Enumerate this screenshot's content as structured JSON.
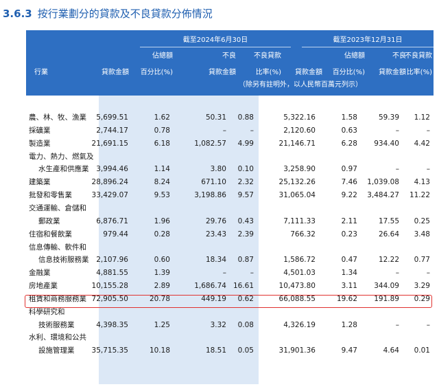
{
  "section": {
    "number": "3.6.3",
    "title": "按行業劃分的貸款及不良貸款分佈情況"
  },
  "header": {
    "industry": "行業",
    "period1": "截至2024年6月30日",
    "period2": "截至2023年12月31日",
    "loan_amount": "貸款金額",
    "pct_line1": "佔總額",
    "pct_line2": "百分比(%)",
    "npl_line1": "不良",
    "npl_line2": "貸款金額",
    "ratio_line1": "不良貸款",
    "ratio_line2": "比率(%)",
    "note": "（除另有註明外，以人民幣百萬元列示）"
  },
  "rows": [
    {
      "label": [
        "農、林、牧、漁業"
      ],
      "v": [
        "5,699.51",
        "1.62",
        "50.31",
        "0.88",
        "5,322.16",
        "1.58",
        "59.39",
        "1.12"
      ]
    },
    {
      "label": [
        "採礦業"
      ],
      "v": [
        "2,744.17",
        "0.78",
        "–",
        "–",
        "2,120.60",
        "0.63",
        "–",
        "–"
      ]
    },
    {
      "label": [
        "製造業"
      ],
      "v": [
        "21,691.15",
        "6.18",
        "1,082.57",
        "4.99",
        "21,146.71",
        "6.28",
        "934.40",
        "4.42"
      ]
    },
    {
      "label": [
        "電力、熱力、燃氣及",
        "水生產和供應業"
      ],
      "v": [
        "3,994.46",
        "1.14",
        "3.80",
        "0.10",
        "3,258.90",
        "0.97",
        "–",
        "–"
      ]
    },
    {
      "label": [
        "建築業"
      ],
      "v": [
        "28,896.24",
        "8.24",
        "671.10",
        "2.32",
        "25,132.26",
        "7.46",
        "1,039.08",
        "4.13"
      ]
    },
    {
      "label": [
        "批發和零售業"
      ],
      "v": [
        "33,429.07",
        "9.53",
        "3,198.86",
        "9.57",
        "31,065.04",
        "9.22",
        "3,484.27",
        "11.22"
      ]
    },
    {
      "label": [
        "交通運輸、倉儲和",
        "郵政業"
      ],
      "v": [
        "6,876.71",
        "1.96",
        "29.76",
        "0.43",
        "7,111.33",
        "2.11",
        "17.55",
        "0.25"
      ]
    },
    {
      "label": [
        "住宿和餐飲業"
      ],
      "v": [
        "979.44",
        "0.28",
        "23.43",
        "2.39",
        "766.32",
        "0.23",
        "26.64",
        "3.48"
      ]
    },
    {
      "label": [
        "信息傳輸、軟件和",
        "信息技術服務業"
      ],
      "v": [
        "2,107.96",
        "0.60",
        "18.34",
        "0.87",
        "1,586.72",
        "0.47",
        "12.22",
        "0.77"
      ]
    },
    {
      "label": [
        "金融業"
      ],
      "v": [
        "4,881.55",
        "1.39",
        "–",
        "–",
        "4,501.03",
        "1.34",
        "–",
        "–"
      ]
    },
    {
      "label": [
        "房地產業"
      ],
      "v": [
        "10,155.28",
        "2.89",
        "1,686.74",
        "16.61",
        "10,473.80",
        "3.11",
        "344.09",
        "3.29"
      ]
    },
    {
      "label": [
        "租賃和商務服務業"
      ],
      "v": [
        "72,905.50",
        "20.78",
        "449.19",
        "0.62",
        "66,088.55",
        "19.62",
        "191.89",
        "0.29"
      ]
    },
    {
      "label": [
        "科學研究和",
        "技術服務業"
      ],
      "v": [
        "4,398.35",
        "1.25",
        "3.32",
        "0.08",
        "4,326.19",
        "1.28",
        "–",
        "–"
      ]
    },
    {
      "label": [
        "水利、環境和公共",
        "設施管理業"
      ],
      "v": [
        "35,715.35",
        "10.18",
        "18.51",
        "0.05",
        "31,901.36",
        "9.47",
        "4.64",
        "0.01"
      ]
    }
  ],
  "highlight": {
    "row_label": "房地產業",
    "color": "#e0312f"
  },
  "colors": {
    "header_bg": "#2e6fc2",
    "shade": "#dce8f6",
    "title": "#1f5fb0"
  }
}
